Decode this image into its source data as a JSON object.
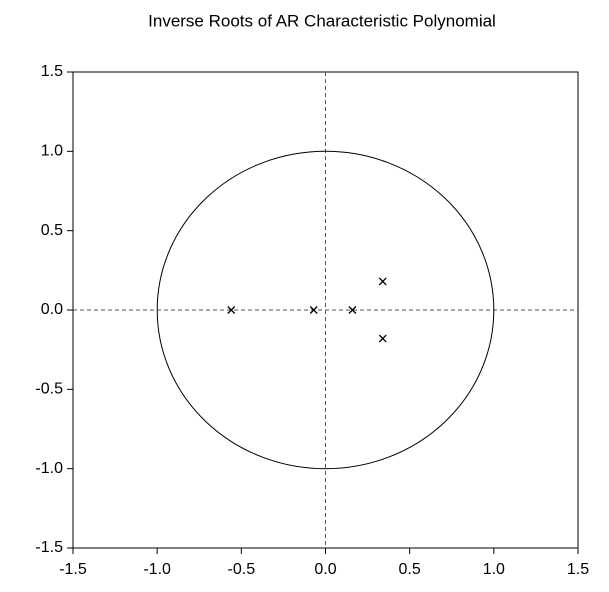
{
  "chart_data": {
    "type": "scatter",
    "title": "Inverse Roots of AR Characteristic Polynomial",
    "x": [
      -0.56,
      -0.07,
      0.16,
      0.34,
      0.34
    ],
    "values": [
      0,
      0,
      0,
      0.18,
      -0.18
    ],
    "color": "#000000",
    "xlim": [
      -1.5,
      1.5
    ],
    "ylim": [
      -1.5,
      1.5
    ],
    "xticks": [
      -1.5,
      {
        "value": -1.0,
        "label": "-1.0"
      },
      -0.5,
      {
        "value": 0,
        "label": "0.0"
      },
      0.5,
      {
        "value": 1.0,
        "label": "1.0"
      },
      1.5
    ],
    "yticks": [
      -1.5,
      {
        "value": -1.0,
        "label": "-1.0"
      },
      -0.5,
      {
        "value": 0,
        "label": "0.0"
      },
      0.5,
      {
        "value": 1.0,
        "label": "1.0"
      },
      1.5
    ]
  }
}
